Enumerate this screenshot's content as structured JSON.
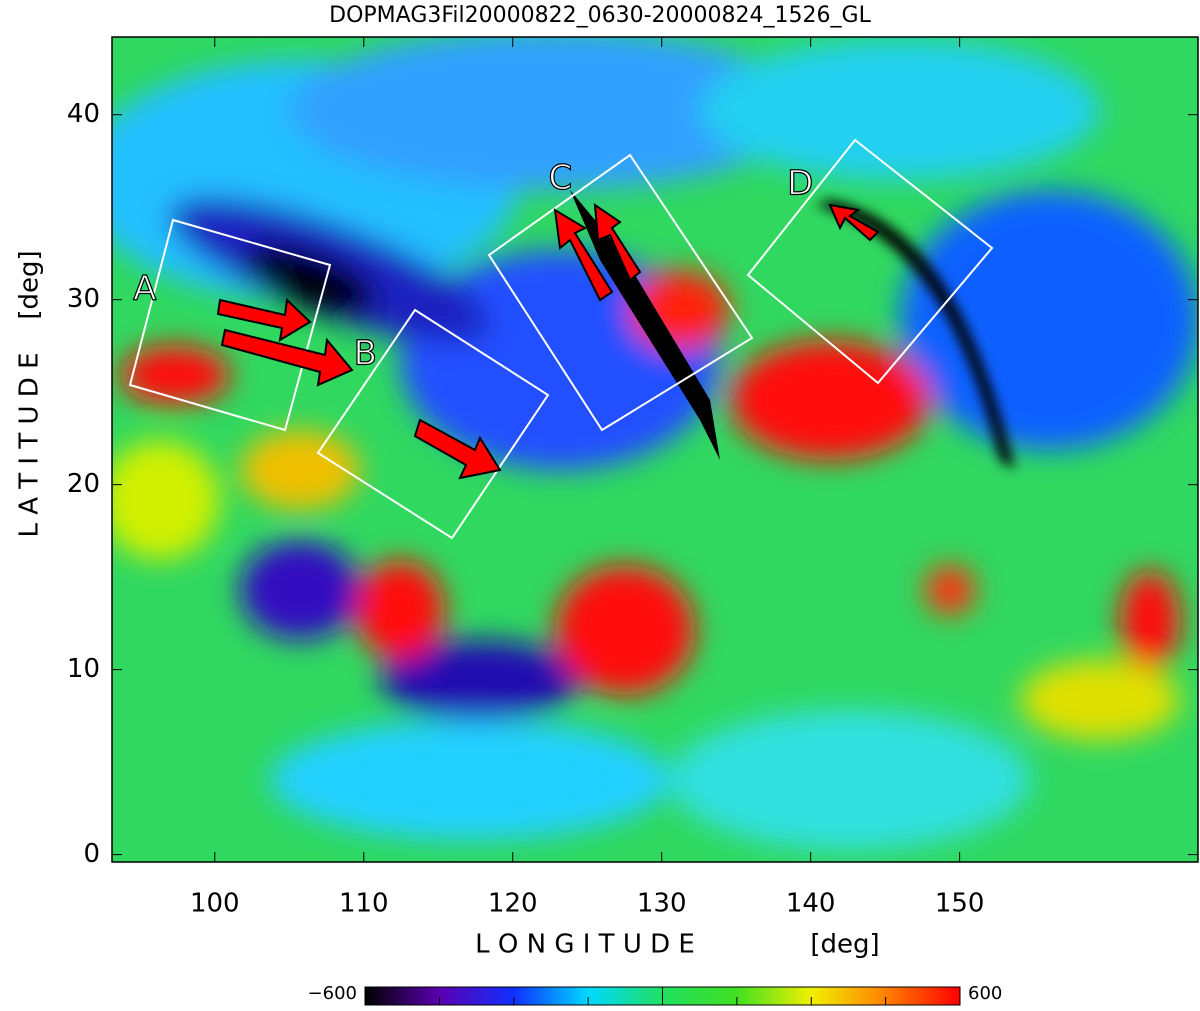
{
  "chart_data": {
    "type": "heatmap",
    "title": "DOPMAG3Fil20000822_0630-20000824_1526_GL",
    "x_label": "L O N G I T U D E",
    "x_unit": "[deg]",
    "y_label": "L A T I T U D E",
    "y_unit": "[deg]",
    "xlim": [
      93.1,
      166
    ],
    "xticks": [
      100,
      110,
      120,
      130,
      140,
      150
    ],
    "ylim": [
      -0.4,
      44.2
    ],
    "yticks": [
      0,
      10,
      20,
      30,
      40
    ],
    "clim": [
      -600,
      600
    ],
    "cticks": [
      {
        "value": -600,
        "label": "−600"
      },
      600
    ],
    "cminor_ticks": [
      -450,
      -300,
      -150,
      0,
      150,
      300,
      450
    ],
    "colors": [
      "#000000",
      "#5a00b0",
      "#1030ff",
      "#00d8ff",
      "#20e060",
      "#40e020",
      "#f0f000",
      "#ff8000",
      "#ff0000"
    ],
    "annotations": [
      {
        "text": "A",
        "x": 95.3,
        "y": 30.5
      },
      {
        "text": "B",
        "x": 110.1,
        "y": 27.0
      },
      {
        "text": "C",
        "x": 123.2,
        "y": 36.5
      },
      {
        "text": "D",
        "x": 139.3,
        "y": 36.2
      }
    ]
  }
}
